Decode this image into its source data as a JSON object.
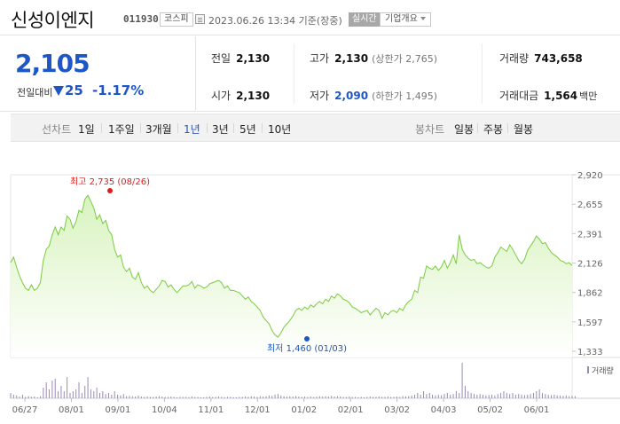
{
  "header": {
    "name": "신성이엔지",
    "code": "011930",
    "market": "코스피",
    "datetime": "2023.06.26 13:34 기준(장중)",
    "realtime": "실시간",
    "company_info": "기업개요"
  },
  "quote": {
    "price": "2,105",
    "change_label": "전일대비",
    "change": "25",
    "change_pct": "-1.17%",
    "direction": "down",
    "color_down": "#1e56c5"
  },
  "info": {
    "prev_label": "전일",
    "prev": "2,130",
    "open_label": "시가",
    "open": "2,130",
    "high_label": "고가",
    "high": "2,130",
    "upper_limit": "(상한가 2,765)",
    "low_label": "저가",
    "low": "2,090",
    "lower_limit": "(하한가 1,495)",
    "volume_label": "거래량",
    "volume": "743,658",
    "amount_label": "거래대금",
    "amount": "1,564",
    "amount_unit": "백만"
  },
  "tabs": {
    "period_label": "선차트",
    "periods": [
      "1일",
      "1주일",
      "3개월",
      "1년",
      "3년",
      "5년",
      "10년"
    ],
    "selected_period": "1년",
    "candle_label": "봉차트",
    "candles": [
      "일봉",
      "주봉",
      "월봉"
    ]
  },
  "chart_data": {
    "type": "area",
    "title": "",
    "ylim": [
      1333,
      2920
    ],
    "y_ticks": [
      "2,920",
      "2,655",
      "2,391",
      "2,126",
      "1,862",
      "1,597",
      "1,333"
    ],
    "x_ticks": [
      "06/27",
      "08/01",
      "09/01",
      "10/04",
      "11/01",
      "12/01",
      "01/02",
      "02/01",
      "03/02",
      "04/03",
      "05/02",
      "06/01"
    ],
    "high_label": "최고 2,735 (08/26)",
    "low_label": "최저 1,460 (01/03)",
    "volume_label": "거래량",
    "line_color": "#7acb3f",
    "fill_color": "#d8f3bf",
    "volume_color": "#9a8ab8",
    "prices": [
      2130,
      2180,
      2090,
      2010,
      1950,
      1900,
      1880,
      1930,
      1880,
      1900,
      1950,
      2150,
      2250,
      2280,
      2380,
      2450,
      2380,
      2450,
      2420,
      2550,
      2520,
      2440,
      2500,
      2600,
      2580,
      2700,
      2735,
      2680,
      2620,
      2520,
      2560,
      2480,
      2510,
      2420,
      2380,
      2250,
      2180,
      2200,
      2090,
      2050,
      2080,
      2000,
      1980,
      2040,
      1950,
      1900,
      1920,
      1880,
      1860,
      1890,
      1920,
      1970,
      1960,
      1910,
      1930,
      1890,
      1860,
      1890,
      1920,
      1920,
      1930,
      1960,
      1900,
      1930,
      1920,
      1900,
      1910,
      1940,
      1950,
      1960,
      1970,
      1950,
      1900,
      1920,
      1880,
      1880,
      1870,
      1860,
      1830,
      1800,
      1820,
      1780,
      1760,
      1730,
      1700,
      1640,
      1610,
      1580,
      1520,
      1480,
      1460,
      1500,
      1550,
      1580,
      1610,
      1650,
      1700,
      1720,
      1700,
      1730,
      1710,
      1750,
      1730,
      1760,
      1780,
      1760,
      1800,
      1780,
      1830,
      1810,
      1850,
      1830,
      1800,
      1790,
      1770,
      1730,
      1720,
      1700,
      1680,
      1690,
      1700,
      1660,
      1690,
      1720,
      1700,
      1630,
      1680,
      1660,
      1690,
      1700,
      1680,
      1720,
      1700,
      1750,
      1780,
      1800,
      1880,
      1860,
      2000,
      1990,
      2100,
      2080,
      2070,
      2100,
      2060,
      2090,
      2150,
      2080,
      2130,
      2200,
      2120,
      2380,
      2250,
      2200,
      2170,
      2150,
      2160,
      2120,
      2130,
      2110,
      2090,
      2080,
      2100,
      2180,
      2220,
      2270,
      2250,
      2230,
      2290,
      2250,
      2200,
      2150,
      2120,
      2160,
      2240,
      2280,
      2320,
      2370,
      2340,
      2300,
      2310,
      2260,
      2220,
      2200,
      2180,
      2150,
      2140,
      2120,
      2130,
      2105
    ],
    "volumes": [
      0.15,
      0.1,
      0.08,
      0.05,
      0.1,
      0.04,
      0.06,
      0.04,
      0.05,
      0.03,
      0.06,
      0.3,
      0.45,
      0.25,
      0.5,
      0.55,
      0.2,
      0.35,
      0.2,
      0.6,
      0.15,
      0.2,
      0.25,
      0.45,
      0.15,
      0.35,
      0.6,
      0.25,
      0.2,
      0.3,
      0.15,
      0.2,
      0.12,
      0.15,
      0.1,
      0.2,
      0.1,
      0.08,
      0.12,
      0.06,
      0.07,
      0.06,
      0.05,
      0.08,
      0.05,
      0.04,
      0.05,
      0.04,
      0.04,
      0.05,
      0.06,
      0.05,
      0.04,
      0.04,
      0.05,
      0.04,
      0.03,
      0.04,
      0.04,
      0.04,
      0.03,
      0.05,
      0.04,
      0.04,
      0.03,
      0.03,
      0.04,
      0.05,
      0.04,
      0.04,
      0.05,
      0.04,
      0.03,
      0.04,
      0.04,
      0.03,
      0.03,
      0.04,
      0.04,
      0.05,
      0.04,
      0.06,
      0.05,
      0.04,
      0.06,
      0.05,
      0.06,
      0.08,
      0.07,
      0.1,
      0.12,
      0.08,
      0.06,
      0.05,
      0.06,
      0.05,
      0.06,
      0.05,
      0.04,
      0.05,
      0.04,
      0.05,
      0.04,
      0.05,
      0.06,
      0.05,
      0.06,
      0.05,
      0.07,
      0.05,
      0.06,
      0.05,
      0.04,
      0.04,
      0.05,
      0.04,
      0.04,
      0.03,
      0.04,
      0.03,
      0.04,
      0.05,
      0.04,
      0.04,
      0.05,
      0.04,
      0.04,
      0.05,
      0.04,
      0.04,
      0.05,
      0.04,
      0.06,
      0.05,
      0.06,
      0.08,
      0.1,
      0.15,
      0.1,
      0.2,
      0.12,
      0.15,
      0.1,
      0.08,
      0.1,
      0.09,
      0.12,
      0.15,
      0.1,
      0.12,
      0.2,
      0.15,
      1.0,
      0.35,
      0.2,
      0.15,
      0.12,
      0.1,
      0.12,
      0.1,
      0.08,
      0.09,
      0.1,
      0.08,
      0.12,
      0.15,
      0.2,
      0.15,
      0.12,
      0.15,
      0.1,
      0.12,
      0.1,
      0.09,
      0.1,
      0.12,
      0.15,
      0.2,
      0.25,
      0.15,
      0.12,
      0.1,
      0.09,
      0.1,
      0.08,
      0.08,
      0.07,
      0.08,
      0.06,
      0.07,
      0.06
    ]
  }
}
